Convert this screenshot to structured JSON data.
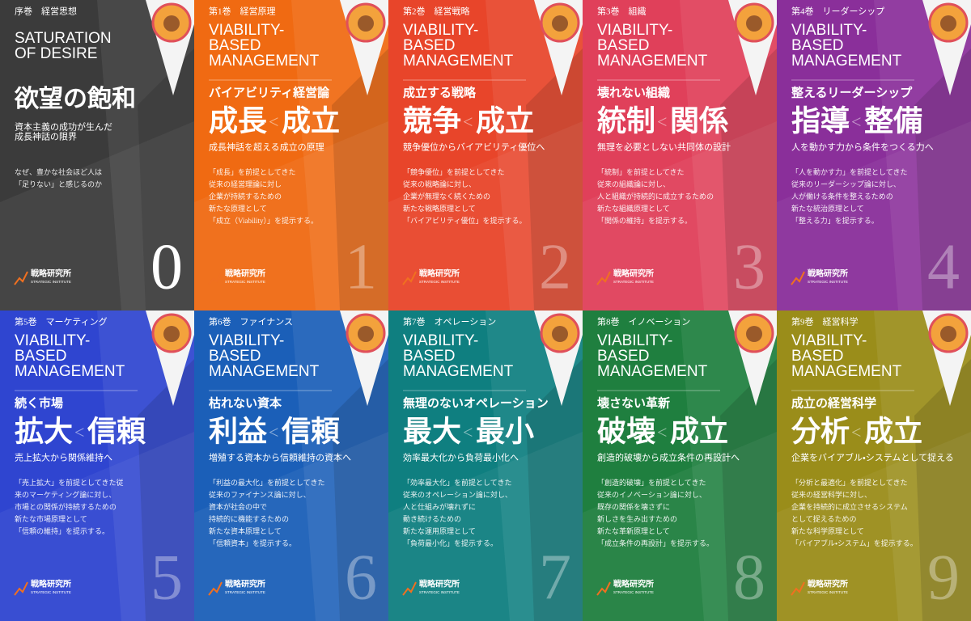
{
  "brand": {
    "name": "戦略研究所",
    "sub": "STRATEGIC INSTITUTE"
  },
  "covers": [
    {
      "series": "序巻　経営思想",
      "color": "#3b3b3b",
      "english": [
        "SATURATION",
        "OF DESIRE"
      ],
      "title": "欲望の飽和",
      "subtitle": [
        "資本主義の成功が生んだ",
        "成長神話の限界"
      ],
      "body": [
        "なぜ、豊かな社会ほど人は",
        "「足りない」と感じるのか"
      ],
      "number": 0,
      "number_color": "#f07020"
    },
    {
      "series": "第1巻　経営原理",
      "color": "#f06a12",
      "english": [
        "VIABILITY-",
        "BASED",
        "MANAGEMENT"
      ],
      "theme": "バイアビリティ経営論",
      "title": {
        "left": "成長",
        "comparator": "<",
        "right": "成立"
      },
      "tagline": "成長神話を超える成立の原理",
      "body": [
        "「成長」を前提としてきた",
        "従来の経営理論に対し",
        "企業が持続するための",
        "新たな原理として",
        "「成立（Viability）」を提示する。"
      ],
      "number": 1
    },
    {
      "series": "第2巻　経営戦略",
      "color": "#e8452a",
      "english": [
        "VIABILITY-",
        "BASED",
        "MANAGEMENT"
      ],
      "theme": "成立する戦略",
      "title": {
        "left": "競争",
        "comparator": "<",
        "right": "成立"
      },
      "tagline": "競争優位からバイアビリティ優位へ",
      "body": [
        "「競争優位」を前提としてきた",
        "従来の戦略論に対し、",
        "企業が無理なく続くための",
        "新たな戦略原理として",
        "「バイアビリティ優位」を提示する。"
      ],
      "number": 2
    },
    {
      "series": "第3巻　組織",
      "color": "#e0405a",
      "english": [
        "VIABILITY-",
        "BASED",
        "MANAGEMENT"
      ],
      "theme": "壊れない組織",
      "title": {
        "left": "統制",
        "comparator": "<",
        "right": "関係"
      },
      "tagline": "無理を必要としない共同体の設計",
      "body": [
        "「統制」を前提としてきた",
        "従来の組織論に対し、",
        "人と組織が持続的に成立するための",
        "新たな組織原理として",
        "「関係の維持」を提示する。"
      ],
      "number": 3
    },
    {
      "series": "第4巻　リーダーシップ",
      "color": "#8a2f9a",
      "english": [
        "VIABILITY-",
        "BASED",
        "MANAGEMENT"
      ],
      "theme": "整えるリーダーシップ",
      "title": {
        "left": "指導",
        "comparator": "<",
        "right": "整備"
      },
      "tagline": "人を動かす力から条件をつくる力へ",
      "body": [
        "「人を動かす力」を前提としてきた",
        "従来のリーダーシップ論に対し、",
        "人が働ける条件を整えるための",
        "新たな統治原理として",
        "「整える力」を提示する。"
      ],
      "number": 4
    },
    {
      "series": "第5巻　マーケティング",
      "color": "#2f45d0",
      "english": [
        "VIABILITY-",
        "BASED",
        "MANAGEMENT"
      ],
      "theme": "続く市場",
      "title": {
        "left": "拡大",
        "comparator": "<",
        "right": "信頼"
      },
      "tagline": "売上拡大から関係維持へ",
      "body": [
        "「売上拡大」を前提としてきた従",
        "来のマーケティング論に対し、",
        "市場との関係が持続するための",
        "新たな市場原理として",
        "「信頼の維持」を提示する。"
      ],
      "number": 5
    },
    {
      "series": "第6巻　ファイナンス",
      "color": "#1b5fb8",
      "english": [
        "VIABILITY-",
        "BASED",
        "MANAGEMENT"
      ],
      "theme": "枯れない資本",
      "title": {
        "left": "利益",
        "comparator": "<",
        "right": "信頼"
      },
      "tagline": "増殖する資本から信頼維持の資本へ",
      "body": [
        "「利益の最大化」を前提としてきた",
        "従来のファイナンス論に対し、",
        "資本が社会の中で",
        "持続的に機能するための",
        "新たな資本原理として",
        "「信頼資本」を提示する。"
      ],
      "number": 6
    },
    {
      "series": "第7巻　オペレーション",
      "color": "#0f7f80",
      "english": [
        "VIABILITY-",
        "BASED",
        "MANAGEMENT"
      ],
      "theme": "無理のないオペレーション",
      "title": {
        "left": "最大",
        "comparator": "<",
        "right": "最小"
      },
      "tagline": "効率最大化から負荷最小化へ",
      "body": [
        "「効率最大化」を前提としてきた",
        "従来のオペレーション論に対し、",
        "人と仕組みが壊れずに",
        "動き続けるための",
        "新たな運用原理として",
        "「負荷最小化」を提示する。"
      ],
      "number": 7
    },
    {
      "series": "第8巻　イノベーション",
      "color": "#1f7f3f",
      "english": [
        "VIABILITY-",
        "BASED",
        "MANAGEMENT"
      ],
      "theme": "壊さない革新",
      "title": {
        "left": "破壊",
        "comparator": "<",
        "right": "成立"
      },
      "tagline": "創造的破壊から成立条件の再設計へ",
      "body": [
        "「創造的破壊」を前提としてきた",
        "従来のイノベーション論に対し、",
        "既存の関係を壊さずに",
        "新しさを生み出すための",
        "新たな革新原理として",
        "「成立条件の再設計」を提示する。"
      ],
      "number": 8
    },
    {
      "series": "第9巻　経営科学",
      "color": "#9a8d1a",
      "english": [
        "VIABILITY-",
        "BASED",
        "MANAGEMENT"
      ],
      "theme": "成立の経営科学",
      "title": {
        "left": "分析",
        "comparator": "<",
        "right": "成立"
      },
      "tagline": "企業をバイアブル・システムとして捉える",
      "body": [
        "「分析と最適化」を前提としてきた",
        "従来の経営科学に対し、",
        "企業を持続的に成立させるシステム",
        "として捉えるための",
        "新たな科学原理として",
        "「バイアブル・システム」を提示する。"
      ],
      "number": 9
    }
  ]
}
